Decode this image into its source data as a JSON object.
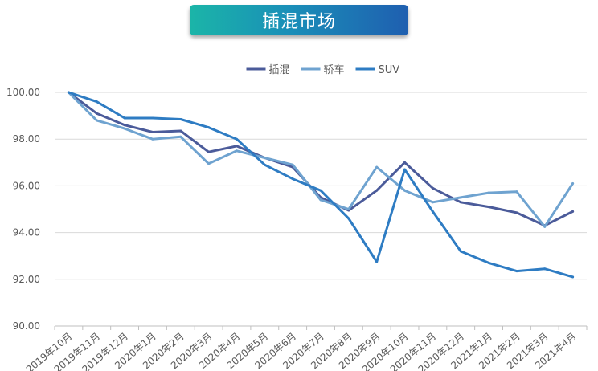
{
  "header": {
    "title": "插混市场"
  },
  "chart_data": {
    "type": "line",
    "title": "插混市场",
    "categories": [
      "2019年10月",
      "2019年11月",
      "2019年12月",
      "2020年1月",
      "2020年2月",
      "2020年3月",
      "2020年4月",
      "2020年5月",
      "2020年6月",
      "2020年7月",
      "2020年8月",
      "2020年9月",
      "2020年10月",
      "2020年11月",
      "2020年12月",
      "2021年1月",
      "2021年2月",
      "2021年3月",
      "2021年4月"
    ],
    "series": [
      {
        "name": "插混",
        "color": "#4b5b9a",
        "values": [
          100.0,
          99.1,
          98.6,
          98.3,
          98.35,
          97.45,
          97.7,
          97.2,
          96.8,
          95.5,
          94.95,
          95.8,
          97.0,
          95.9,
          95.3,
          95.1,
          94.85,
          94.3,
          94.9
        ]
      },
      {
        "name": "轿车",
        "color": "#6fa3d0",
        "values": [
          100.0,
          98.8,
          98.45,
          98.0,
          98.1,
          96.95,
          97.5,
          97.2,
          96.9,
          95.4,
          95.0,
          96.8,
          95.8,
          95.3,
          95.5,
          95.7,
          95.75,
          94.25,
          96.1
        ]
      },
      {
        "name": "SUV",
        "color": "#2e7cc3",
        "values": [
          100.0,
          99.6,
          98.9,
          98.9,
          98.85,
          98.5,
          98.0,
          96.9,
          96.3,
          95.8,
          94.6,
          92.75,
          96.7,
          94.9,
          93.2,
          92.7,
          92.35,
          92.45,
          92.1
        ]
      }
    ],
    "ylim": [
      90,
      100
    ],
    "yticks": [
      "100.00",
      "98.00",
      "96.00",
      "94.00",
      "92.00",
      "90.00"
    ],
    "ytick_values": [
      100,
      98,
      96,
      94,
      92,
      90
    ],
    "grid": true,
    "legend_position": "top-center",
    "xlabel": "",
    "ylabel": ""
  }
}
